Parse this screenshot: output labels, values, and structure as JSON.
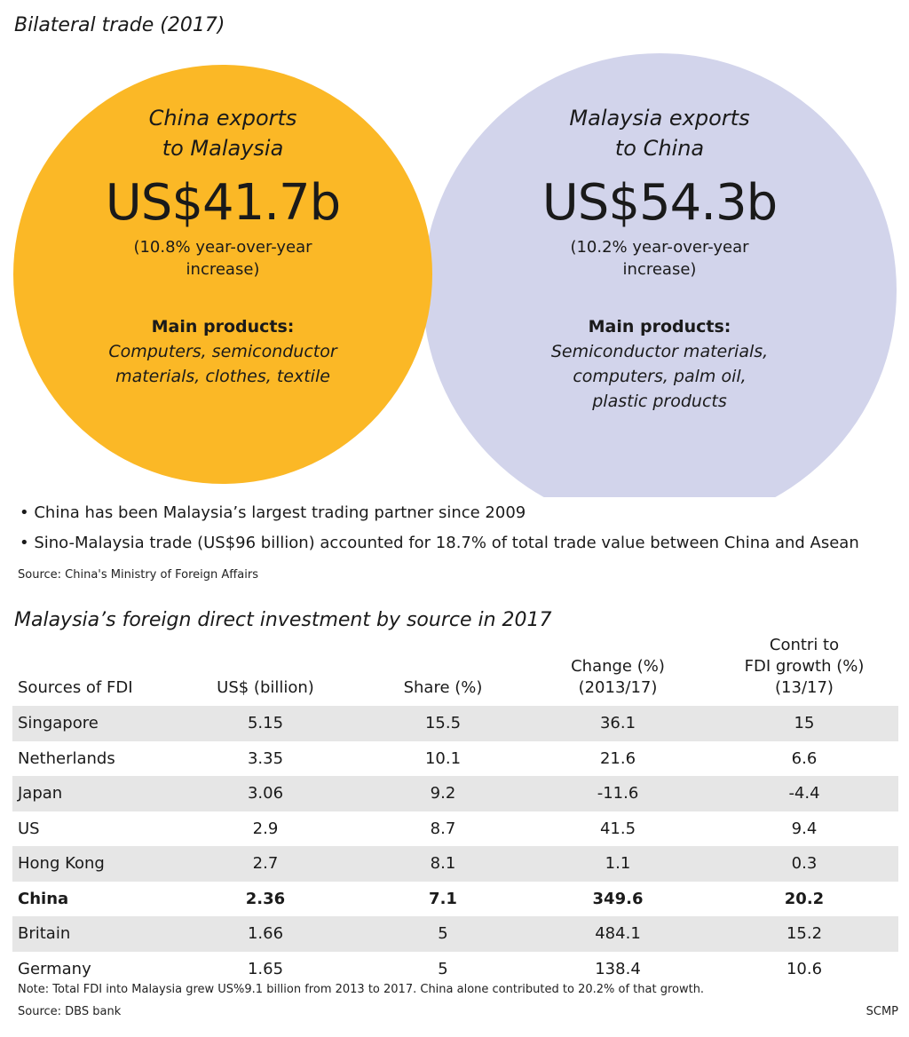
{
  "header": {
    "title": "Bilateral trade (2017)"
  },
  "venn": {
    "left": {
      "heading": [
        "China exports",
        "to Malaysia"
      ],
      "value": "US$41.7b",
      "change": [
        "(10.8% year-over-year",
        "increase)"
      ],
      "products_heading": "Main products:",
      "products": [
        "Computers, semiconductor",
        "materials, clothes, textile"
      ],
      "color": "#fbb826"
    },
    "right": {
      "heading": [
        "Malaysia exports",
        "to China"
      ],
      "value": "US$54.3b",
      "change": [
        "(10.2% year-over-year",
        "increase)"
      ],
      "products_heading": "Main products:",
      "products": [
        "Semiconductor materials,",
        "computers, palm oil,",
        "plastic products"
      ],
      "color": "#d2d4eb"
    }
  },
  "notes": {
    "bullets": [
      "• China has been Malaysia’s largest trading partner since 2009",
      "• Sino-Malaysia trade (US$96 billion) accounted for 18.7% of total trade value between China and Asean"
    ],
    "source": "Source: China's Ministry of Foreign Affairs"
  },
  "chart_data": {
    "type": "table",
    "title": "Malaysia’s foreign direct investment by source in 2017",
    "columns": [
      [
        "Sources of FDI"
      ],
      [
        "US$ (billion)"
      ],
      [
        "Share (%)"
      ],
      [
        "Change (%)",
        "(2013/17)"
      ],
      [
        "Contri to",
        "FDI growth (%)",
        "(13/17)"
      ]
    ],
    "rows": [
      {
        "source": "Singapore",
        "usd": "5.15",
        "share": "15.5",
        "change": "36.1",
        "contri": "15"
      },
      {
        "source": "Netherlands",
        "usd": "3.35",
        "share": "10.1",
        "change": "21.6",
        "contri": "6.6"
      },
      {
        "source": "Japan",
        "usd": "3.06",
        "share": "9.2",
        "change": "-11.6",
        "contri": "-4.4"
      },
      {
        "source": "US",
        "usd": "2.9",
        "share": "8.7",
        "change": "41.5",
        "contri": "9.4"
      },
      {
        "source": "Hong Kong",
        "usd": "2.7",
        "share": "8.1",
        "change": "1.1",
        "contri": "0.3"
      },
      {
        "source": "China",
        "usd": "2.36",
        "share": "7.1",
        "change": "349.6",
        "contri": "20.2",
        "highlight": true
      },
      {
        "source": "Britain",
        "usd": "1.66",
        "share": "5",
        "change": "484.1",
        "contri": "15.2"
      },
      {
        "source": "Germany",
        "usd": "1.65",
        "share": "5",
        "change": "138.4",
        "contri": "10.6"
      }
    ],
    "note": "Note: Total FDI into Malaysia grew US%9.1 billion from 2013 to 2017. China alone contributed to 20.2% of that growth.",
    "source": "Source: DBS bank",
    "credit": "SCMP"
  }
}
